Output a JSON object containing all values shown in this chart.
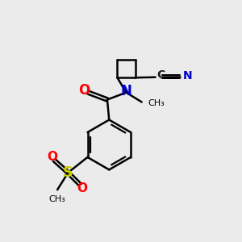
{
  "background_color": "#ebebeb",
  "bond_color": "#000000",
  "bond_width": 1.8,
  "atom_colors": {
    "O": "#ff0000",
    "N": "#0000cc",
    "S": "#cccc00",
    "C": "#1a1a1a"
  },
  "fig_width": 3.0,
  "fig_height": 3.0,
  "dpi": 100
}
